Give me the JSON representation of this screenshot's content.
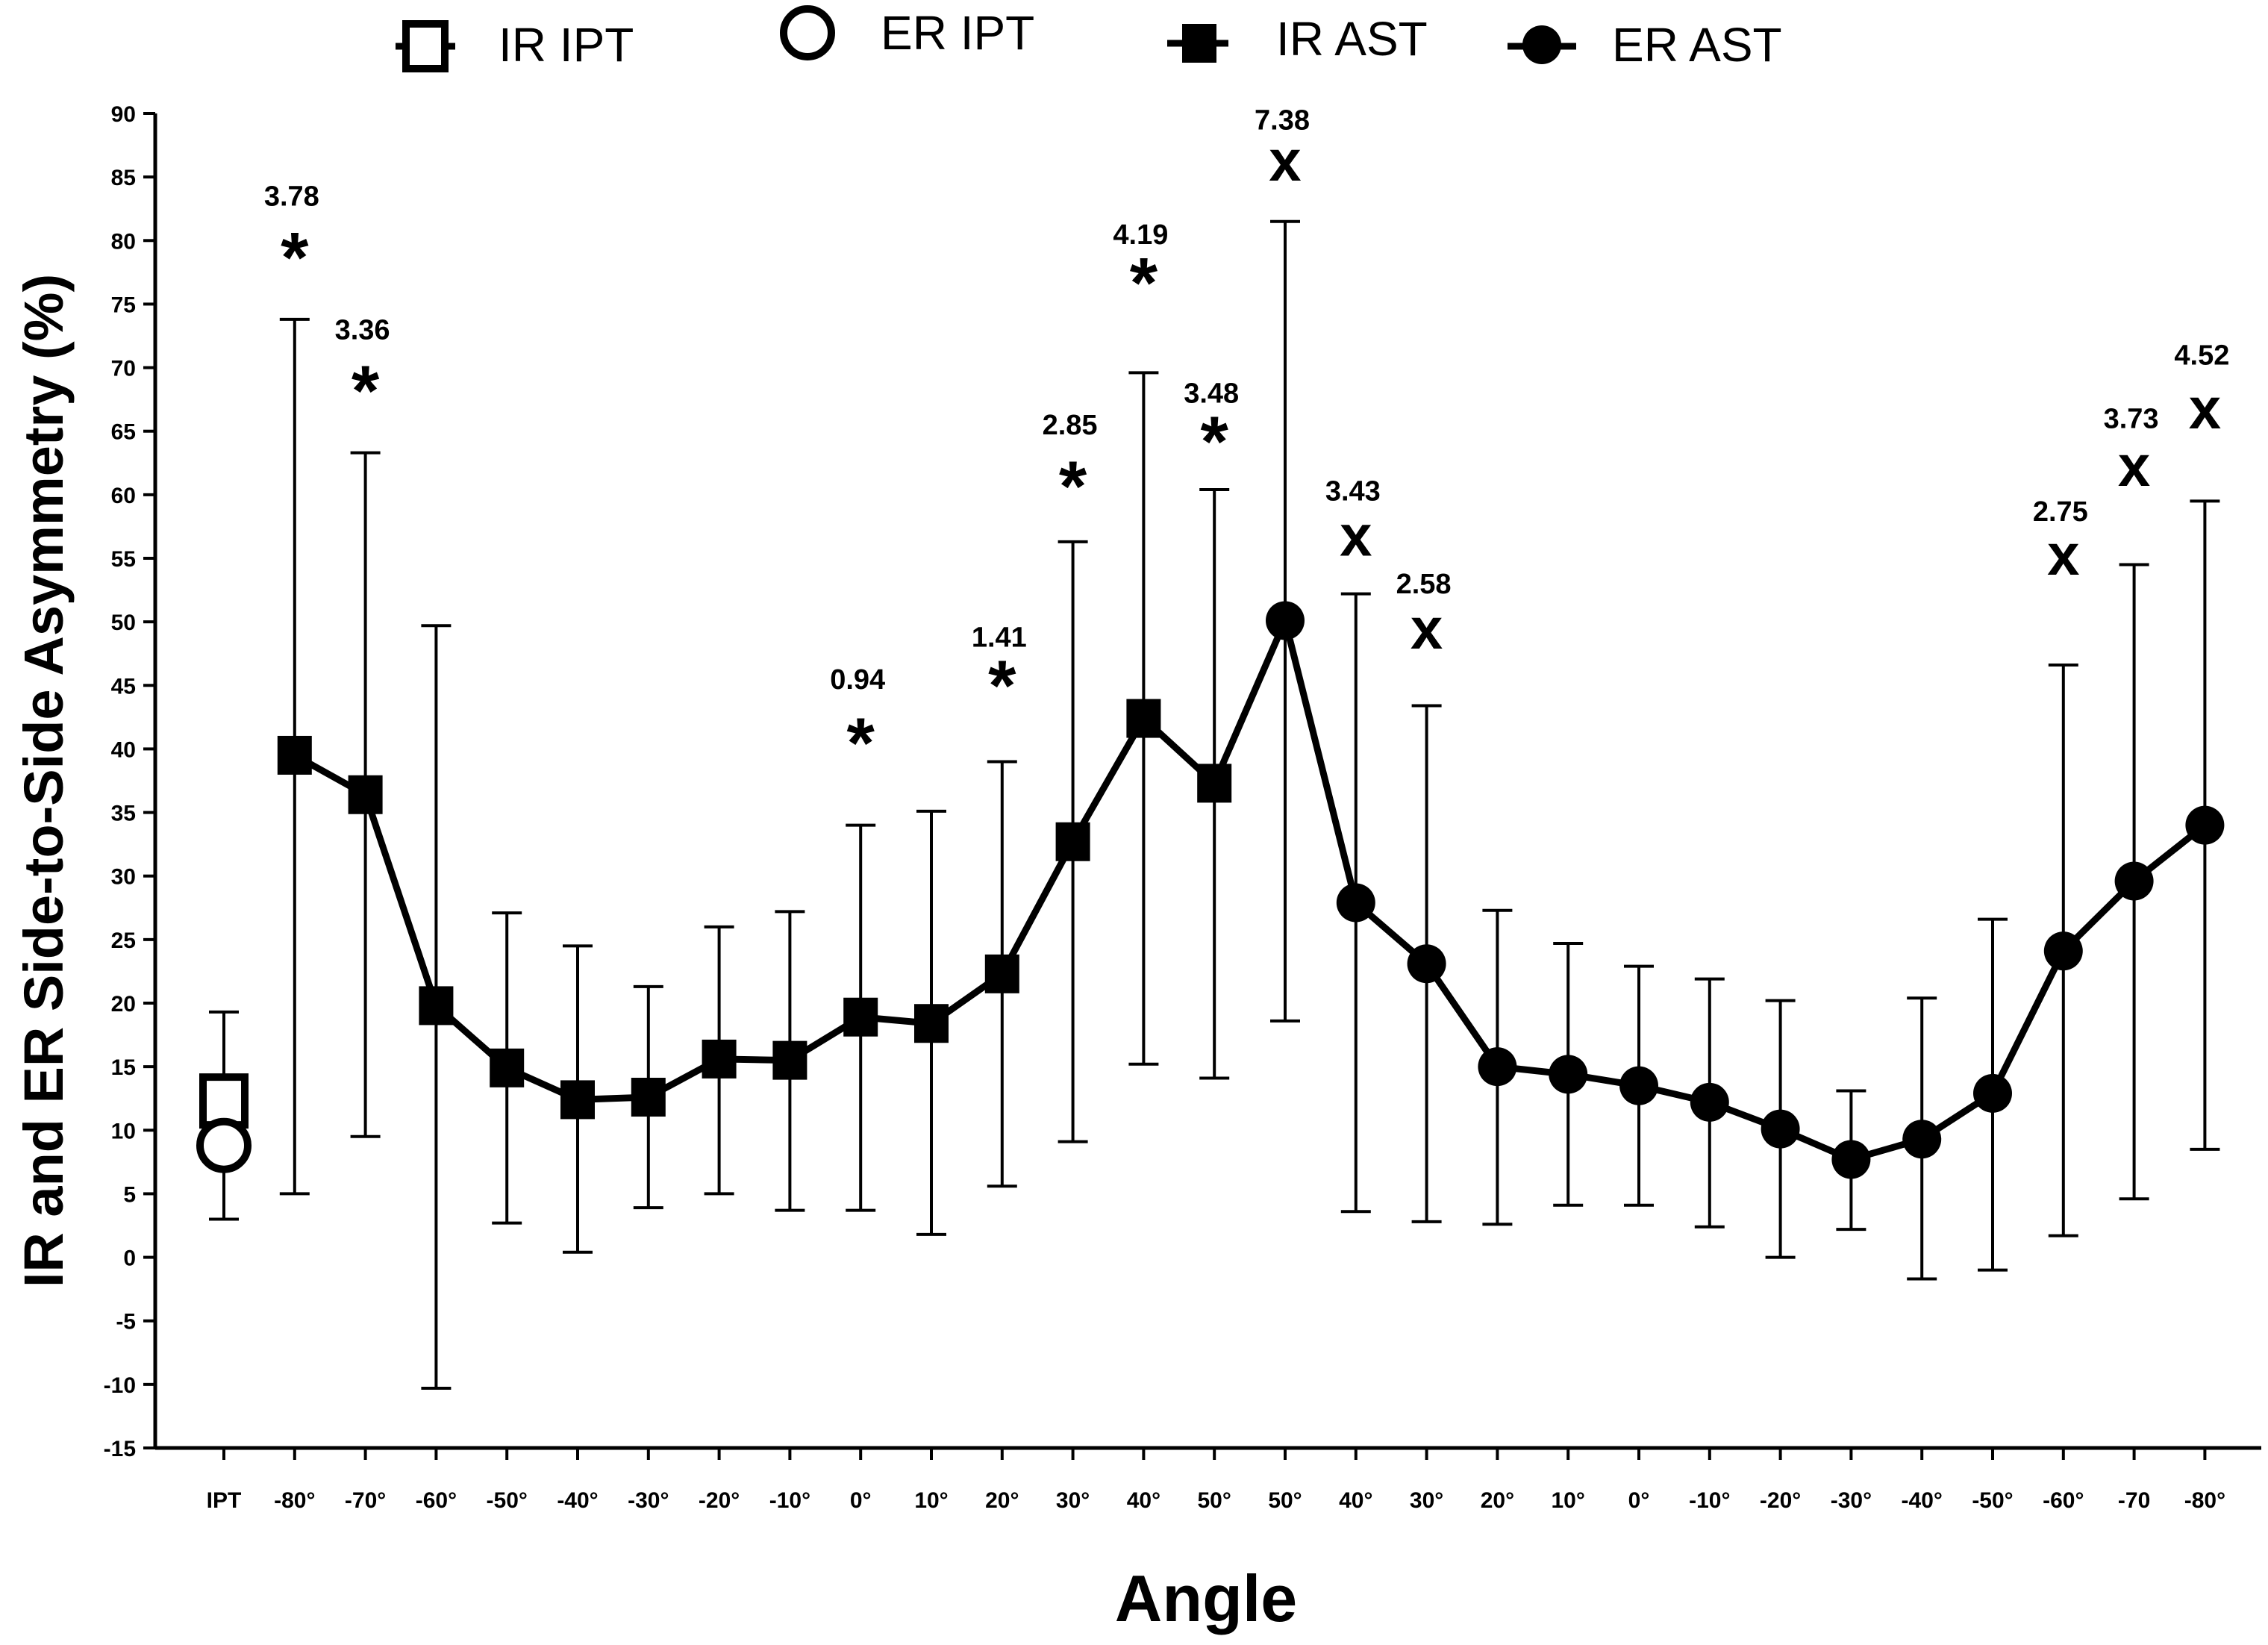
{
  "chart_data": {
    "type": "line",
    "title": "",
    "xlabel": "Angle",
    "ylabel": "IR and ER Side-to-Side Asymmetry (%)",
    "ylim": [
      -15,
      90
    ],
    "yticks": [
      -15,
      -10,
      -5,
      0,
      5,
      10,
      15,
      20,
      25,
      30,
      35,
      40,
      45,
      50,
      55,
      60,
      65,
      70,
      75,
      80,
      85,
      90
    ],
    "categories": [
      "IPT",
      "-80°",
      "-70°",
      "-60°",
      "-50°",
      "-40°",
      "-30°",
      "-20°",
      "-10°",
      "0°",
      "10°",
      "20°",
      "30°",
      "40°",
      "50°",
      "50°",
      "40°",
      "30°",
      "20°",
      "10°",
      "0°",
      "-10°",
      "-20°",
      "-30°",
      "-40°",
      "-50°",
      "-60°",
      "-70",
      "-80°"
    ],
    "legend": [
      {
        "name": "IR IPT",
        "marker": "open-square"
      },
      {
        "name": "ER IPT",
        "marker": "open-circle"
      },
      {
        "name": "IR AST",
        "marker": "filled-square"
      },
      {
        "name": "ER AST",
        "marker": "filled-circle"
      }
    ],
    "series": [
      {
        "name": "IR IPT",
        "marker": "open-square",
        "points": [
          {
            "i": 0,
            "y": 12.3
          }
        ]
      },
      {
        "name": "ER IPT",
        "marker": "open-circle",
        "points": [
          {
            "i": 0,
            "y": 8.8,
            "err_low": 3.0,
            "err_high": 19.3
          }
        ]
      },
      {
        "name": "IR AST",
        "marker": "filled-square",
        "points": [
          {
            "i": 1,
            "y": 39.5,
            "err_low": 5.0,
            "err_high": 73.8
          },
          {
            "i": 2,
            "y": 36.4,
            "err_low": 9.5,
            "err_high": 63.3
          },
          {
            "i": 3,
            "y": 19.8,
            "err_low": -10.3,
            "err_high": 49.7
          },
          {
            "i": 4,
            "y": 14.9,
            "err_low": 2.7,
            "err_high": 27.1
          },
          {
            "i": 5,
            "y": 12.4,
            "err_low": 0.4,
            "err_high": 24.5
          },
          {
            "i": 6,
            "y": 12.6,
            "err_low": 3.9,
            "err_high": 21.3
          },
          {
            "i": 7,
            "y": 15.6,
            "err_low": 5.0,
            "err_high": 26.0
          },
          {
            "i": 8,
            "y": 15.5,
            "err_low": 3.7,
            "err_high": 27.2
          },
          {
            "i": 9,
            "y": 18.9,
            "err_low": 3.7,
            "err_high": 34.0
          },
          {
            "i": 10,
            "y": 18.4,
            "err_low": 1.8,
            "err_high": 35.1
          },
          {
            "i": 11,
            "y": 22.3,
            "err_low": 5.6,
            "err_high": 39.0
          },
          {
            "i": 12,
            "y": 32.7,
            "err_low": 9.1,
            "err_high": 56.3
          },
          {
            "i": 13,
            "y": 42.4,
            "err_low": 15.2,
            "err_high": 69.6
          },
          {
            "i": 14,
            "y": 37.3,
            "err_low": 14.1,
            "err_high": 60.4
          }
        ]
      },
      {
        "name": "ER AST",
        "marker": "filled-circle",
        "points": [
          {
            "i": 15,
            "y": 50.1,
            "err_low": 18.6,
            "err_high": 81.5
          },
          {
            "i": 16,
            "y": 27.9,
            "err_low": 3.6,
            "err_high": 52.2
          },
          {
            "i": 17,
            "y": 23.1,
            "err_low": 2.8,
            "err_high": 43.4
          },
          {
            "i": 18,
            "y": 15.0,
            "err_low": 2.6,
            "err_high": 27.3
          },
          {
            "i": 19,
            "y": 14.4,
            "err_low": 4.1,
            "err_high": 24.7
          },
          {
            "i": 20,
            "y": 13.5,
            "err_low": 4.1,
            "err_high": 22.9
          },
          {
            "i": 21,
            "y": 12.2,
            "err_low": 2.4,
            "err_high": 21.9
          },
          {
            "i": 22,
            "y": 10.1,
            "err_low": 0.0,
            "err_high": 20.2
          },
          {
            "i": 23,
            "y": 7.7,
            "err_low": 2.2,
            "err_high": 13.1
          },
          {
            "i": 24,
            "y": 9.3,
            "err_low": -1.7,
            "err_high": 20.4
          },
          {
            "i": 25,
            "y": 12.9,
            "err_low": -1.0,
            "err_high": 26.6
          },
          {
            "i": 26,
            "y": 24.1,
            "err_low": 1.7,
            "err_high": 46.6
          },
          {
            "i": 27,
            "y": 29.6,
            "err_low": 4.6,
            "err_high": 54.5
          },
          {
            "i": 28,
            "y": 34.0,
            "err_low": 8.5,
            "err_high": 59.5
          }
        ]
      }
    ],
    "annotations": [
      {
        "i": 1,
        "mark": "*",
        "value": "3.78",
        "mark_y": 78.5,
        "value_y": 83.5
      },
      {
        "i": 2,
        "mark": "*",
        "value": "3.36",
        "mark_y": 68.0,
        "value_y": 73.0
      },
      {
        "i": 9,
        "mark": "*",
        "value": "0.94",
        "mark_y": 40.3,
        "value_y": 45.5
      },
      {
        "i": 11,
        "mark": "*",
        "value": "1.41",
        "mark_y": 44.8,
        "value_y": 48.8
      },
      {
        "i": 12,
        "mark": "*",
        "value": "2.85",
        "mark_y": 60.5,
        "value_y": 65.5
      },
      {
        "i": 13,
        "mark": "*",
        "value": "4.19",
        "mark_y": 76.5,
        "value_y": 80.5
      },
      {
        "i": 14,
        "mark": "*",
        "value": "3.48",
        "mark_y": 64.0,
        "value_y": 68.0
      },
      {
        "i": 15,
        "mark": "x",
        "value": "7.38",
        "mark_y": 86.0,
        "value_y": 89.5
      },
      {
        "i": 16,
        "mark": "x",
        "value": "3.43",
        "mark_y": 56.5,
        "value_y": 60.3
      },
      {
        "i": 17,
        "mark": "x",
        "value": "2.58",
        "mark_y": 49.2,
        "value_y": 53.0
      },
      {
        "i": 26,
        "mark": "x",
        "value": "2.75",
        "mark_y": 55.0,
        "value_y": 58.7
      },
      {
        "i": 27,
        "mark": "x",
        "value": "3.73",
        "mark_y": 62.0,
        "value_y": 66.0
      },
      {
        "i": 28,
        "mark": "x",
        "value": "4.52",
        "mark_y": 66.5,
        "value_y": 71.0
      }
    ]
  }
}
